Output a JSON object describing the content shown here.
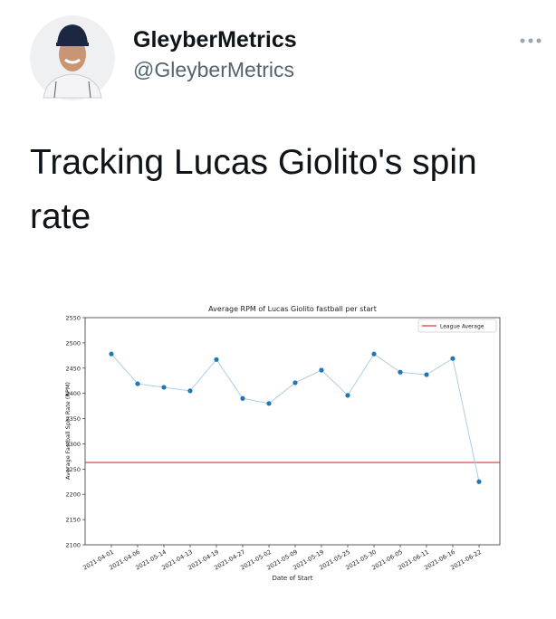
{
  "tweet": {
    "name": "GleyberMetrics",
    "handle": "@GleyberMetrics",
    "text": "Tracking Lucas Giolito's spin rate"
  },
  "chart_data": {
    "type": "line",
    "title": "Average RPM of Lucas Giolito fastball per start",
    "x_label": "Date of Start",
    "y_label": "Average Fastball Spin Rate (RPM)",
    "categories": [
      "2021-04-01",
      "2021-04-06",
      "2021-05-14",
      "2021-04-13",
      "2021-04-19",
      "2021-04-27",
      "2021-05-02",
      "2021-05-09",
      "2021-05-19",
      "2021-05-25",
      "2021-05-30",
      "2021-06-05",
      "2021-06-11",
      "2021-06-16",
      "2021-06-22"
    ],
    "values": [
      2478,
      2419,
      2412,
      2405,
      2467,
      2390,
      2380,
      2421,
      2446,
      2396,
      2478,
      2442,
      2437,
      2469,
      2225
    ],
    "color": "#1f77b4",
    "line_color": "#a9cfe6",
    "hlines": [
      {
        "name": "League Average",
        "value": 2263,
        "color": "#e03030"
      }
    ],
    "legend": "upper right",
    "ylim": [
      2100,
      2550
    ],
    "yticks": [
      2100,
      2150,
      2200,
      2250,
      2300,
      2350,
      2400,
      2450,
      2500,
      2550
    ]
  }
}
